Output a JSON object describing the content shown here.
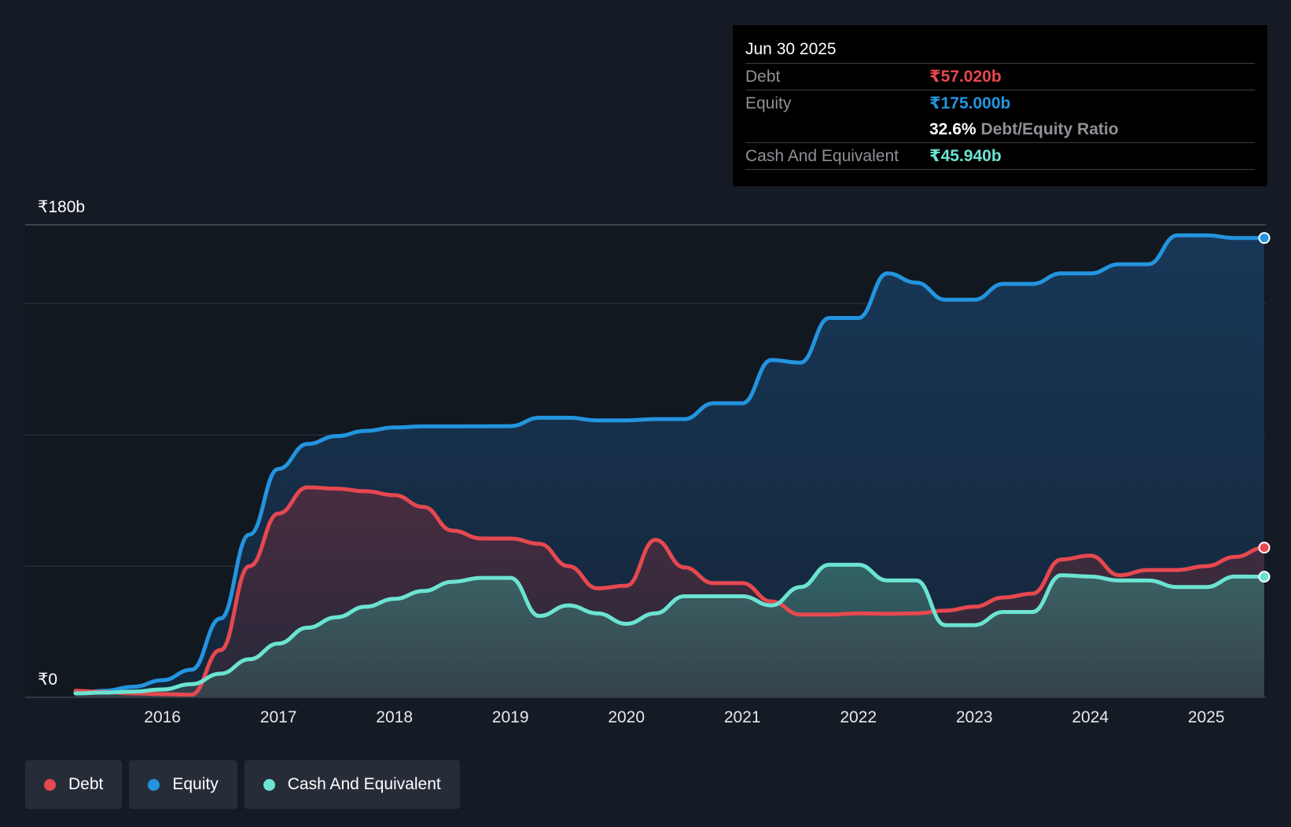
{
  "tooltip": {
    "date": "Jun 30 2025",
    "debt_label": "Debt",
    "debt_value": "₹57.020b",
    "equity_label": "Equity",
    "equity_value": "₹175.000b",
    "ratio_value": "32.6%",
    "ratio_label": "Debt/Equity Ratio",
    "cash_label": "Cash And Equivalent",
    "cash_value": "₹45.940b"
  },
  "legend": {
    "debt": "Debt",
    "equity": "Equity",
    "cash": "Cash And Equivalent"
  },
  "colors": {
    "debt": "#e64850",
    "equity": "#2394df",
    "cash": "#6ce3d2",
    "background": "#151b24"
  },
  "chart_data": {
    "type": "area",
    "ylim": [
      0,
      180
    ],
    "y_ticks": [
      {
        "value": 180,
        "label": "₹180b"
      },
      {
        "value": 0,
        "label": "₹0"
      }
    ],
    "gridlines": [
      180,
      150,
      100,
      50
    ],
    "xlim": [
      2015.25,
      2025.5
    ],
    "x_ticks": [
      {
        "value": 2016,
        "label": "2016"
      },
      {
        "value": 2017,
        "label": "2017"
      },
      {
        "value": 2018,
        "label": "2018"
      },
      {
        "value": 2019,
        "label": "2019"
      },
      {
        "value": 2020,
        "label": "2020"
      },
      {
        "value": 2021,
        "label": "2021"
      },
      {
        "value": 2022,
        "label": "2022"
      },
      {
        "value": 2023,
        "label": "2023"
      },
      {
        "value": 2024,
        "label": "2024"
      },
      {
        "value": 2025,
        "label": "2025"
      }
    ],
    "series": [
      {
        "name": "Equity",
        "color": "#2394df",
        "points": [
          [
            2015.25,
            1.5
          ],
          [
            2015.5,
            2.5
          ],
          [
            2015.75,
            4
          ],
          [
            2016.0,
            6.5
          ],
          [
            2016.25,
            10.5
          ],
          [
            2016.5,
            30
          ],
          [
            2016.75,
            62
          ],
          [
            2017.0,
            87
          ],
          [
            2017.25,
            96.5
          ],
          [
            2017.5,
            99.5
          ],
          [
            2017.75,
            101.5
          ],
          [
            2018.0,
            102.8
          ],
          [
            2018.25,
            103.2
          ],
          [
            2018.5,
            103.2
          ],
          [
            2019.0,
            103.3
          ],
          [
            2019.25,
            106.5
          ],
          [
            2019.5,
            106.5
          ],
          [
            2019.75,
            105.5
          ],
          [
            2020.0,
            105.5
          ],
          [
            2020.25,
            106
          ],
          [
            2020.5,
            106
          ],
          [
            2020.75,
            112
          ],
          [
            2021.0,
            112
          ],
          [
            2021.25,
            128.5
          ],
          [
            2021.5,
            127.5
          ],
          [
            2021.75,
            144.5
          ],
          [
            2022.0,
            144.5
          ],
          [
            2022.25,
            161.5
          ],
          [
            2022.5,
            158
          ],
          [
            2022.75,
            151.5
          ],
          [
            2023.0,
            151.5
          ],
          [
            2023.25,
            157.5
          ],
          [
            2023.5,
            157.5
          ],
          [
            2023.75,
            161.5
          ],
          [
            2024.0,
            161.5
          ],
          [
            2024.25,
            165
          ],
          [
            2024.5,
            165
          ],
          [
            2024.75,
            176
          ],
          [
            2025.0,
            176
          ],
          [
            2025.25,
            175
          ],
          [
            2025.5,
            175
          ]
        ]
      },
      {
        "name": "Debt",
        "color": "#e64850",
        "points": [
          [
            2015.25,
            2.5
          ],
          [
            2015.5,
            2
          ],
          [
            2015.75,
            1.5
          ],
          [
            2016.0,
            1.2
          ],
          [
            2016.25,
            1
          ],
          [
            2016.5,
            18
          ],
          [
            2016.75,
            50
          ],
          [
            2017.0,
            70
          ],
          [
            2017.25,
            80
          ],
          [
            2017.5,
            79.5
          ],
          [
            2017.75,
            78.5
          ],
          [
            2018.0,
            77
          ],
          [
            2018.25,
            72.5
          ],
          [
            2018.5,
            63.5
          ],
          [
            2018.75,
            60.5
          ],
          [
            2019.0,
            60.5
          ],
          [
            2019.25,
            58.5
          ],
          [
            2019.5,
            50
          ],
          [
            2019.75,
            41.5
          ],
          [
            2020.0,
            42.5
          ],
          [
            2020.25,
            60
          ],
          [
            2020.5,
            49.5
          ],
          [
            2020.75,
            43.5
          ],
          [
            2021.0,
            43.5
          ],
          [
            2021.25,
            36.5
          ],
          [
            2021.5,
            31.5
          ],
          [
            2021.75,
            31.5
          ],
          [
            2022.0,
            32
          ],
          [
            2022.25,
            31.8
          ],
          [
            2022.5,
            32
          ],
          [
            2022.75,
            33
          ],
          [
            2023.0,
            34.5
          ],
          [
            2023.25,
            38
          ],
          [
            2023.5,
            39.5
          ],
          [
            2023.75,
            52.5
          ],
          [
            2024.0,
            54
          ],
          [
            2024.25,
            46.5
          ],
          [
            2024.5,
            48.5
          ],
          [
            2024.75,
            48.5
          ],
          [
            2025.0,
            50
          ],
          [
            2025.25,
            53.5
          ],
          [
            2025.5,
            57.02
          ]
        ]
      },
      {
        "name": "Cash And Equivalent",
        "color": "#6ce3d2",
        "points": [
          [
            2015.25,
            1.5
          ],
          [
            2015.5,
            1.8
          ],
          [
            2015.75,
            2.2
          ],
          [
            2016.0,
            3
          ],
          [
            2016.25,
            5
          ],
          [
            2016.5,
            9
          ],
          [
            2016.75,
            14.5
          ],
          [
            2017.0,
            20.5
          ],
          [
            2017.25,
            26.5
          ],
          [
            2017.5,
            30.5
          ],
          [
            2017.75,
            34.5
          ],
          [
            2018.0,
            37.5
          ],
          [
            2018.25,
            40.5
          ],
          [
            2018.5,
            44
          ],
          [
            2018.75,
            45.5
          ],
          [
            2019.0,
            45.5
          ],
          [
            2019.25,
            31
          ],
          [
            2019.5,
            35
          ],
          [
            2019.75,
            32
          ],
          [
            2020.0,
            28
          ],
          [
            2020.25,
            32
          ],
          [
            2020.5,
            38.5
          ],
          [
            2020.75,
            38.5
          ],
          [
            2021.0,
            38.5
          ],
          [
            2021.25,
            35
          ],
          [
            2021.5,
            42
          ],
          [
            2021.75,
            50.5
          ],
          [
            2022.0,
            50.5
          ],
          [
            2022.25,
            44.5
          ],
          [
            2022.5,
            44.5
          ],
          [
            2022.75,
            27.5
          ],
          [
            2023.0,
            27.5
          ],
          [
            2023.25,
            32.5
          ],
          [
            2023.5,
            32.5
          ],
          [
            2023.75,
            46.5
          ],
          [
            2024.0,
            46
          ],
          [
            2024.25,
            44.5
          ],
          [
            2024.5,
            44.5
          ],
          [
            2024.75,
            42
          ],
          [
            2025.0,
            42
          ],
          [
            2025.25,
            46
          ],
          [
            2025.5,
            45.94
          ]
        ]
      }
    ]
  }
}
